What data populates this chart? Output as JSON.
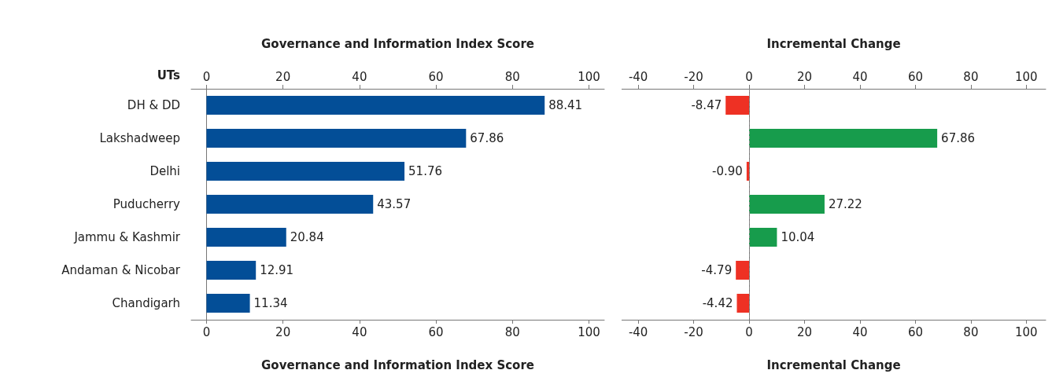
{
  "chart_data": [
    {
      "type": "bar",
      "orientation": "horizontal",
      "xlabel": "Governance and Information Index Score",
      "x2label": "Governance and Information Index Score",
      "ylabel": "UTs",
      "categories": [
        "DH & DD",
        "Lakshadweep",
        "Delhi",
        "Puducherry",
        "Jammu & Kashmir",
        "Andaman & Nicobar",
        "Chandigarh"
      ],
      "series": [
        {
          "color": "#034e97",
          "values": [
            88.41,
            67.86,
            51.76,
            43.57,
            20.84,
            12.91,
            11.34
          ]
        }
      ],
      "xlim": [
        -4,
        104
      ],
      "xticks": [
        0,
        20,
        40,
        60,
        80,
        100
      ],
      "x2lim": [
        -4,
        104
      ],
      "x2ticks": [
        0,
        20,
        40,
        60,
        80,
        100
      ],
      "data_labels": true,
      "grid": false
    },
    {
      "type": "bar",
      "orientation": "horizontal",
      "xlabel": "Incremental Change",
      "x2label": "Incremental Change",
      "categories": [
        null,
        null,
        null,
        null,
        null,
        null,
        null
      ],
      "series": [
        {
          "colors": [
            "#ee3124",
            "#179c4c",
            "#ee3124",
            "#179c4c",
            "#179c4c",
            "#ee3124",
            "#ee3124"
          ],
          "values": [
            -8.47,
            67.86,
            -0.9,
            27.22,
            10.04,
            -4.79,
            -4.42
          ],
          "value_labels": [
            "-8.47",
            "67.86",
            "-0.90",
            "27.22",
            "10.04",
            "-4.79",
            "-4.42"
          ]
        }
      ],
      "xlim": [
        -46,
        107
      ],
      "xticks": [
        -40,
        -20,
        0,
        20,
        40,
        60,
        80,
        100
      ],
      "x2lim": [
        -46,
        107
      ],
      "x2ticks": [
        -40,
        -20,
        0,
        20,
        40,
        60,
        80,
        100
      ],
      "ref_lines": [
        {
          "axis": "x",
          "value": 0,
          "line_style": "dashed",
          "color": "#888888"
        }
      ],
      "tick_labels": "x",
      "grid": false
    }
  ]
}
